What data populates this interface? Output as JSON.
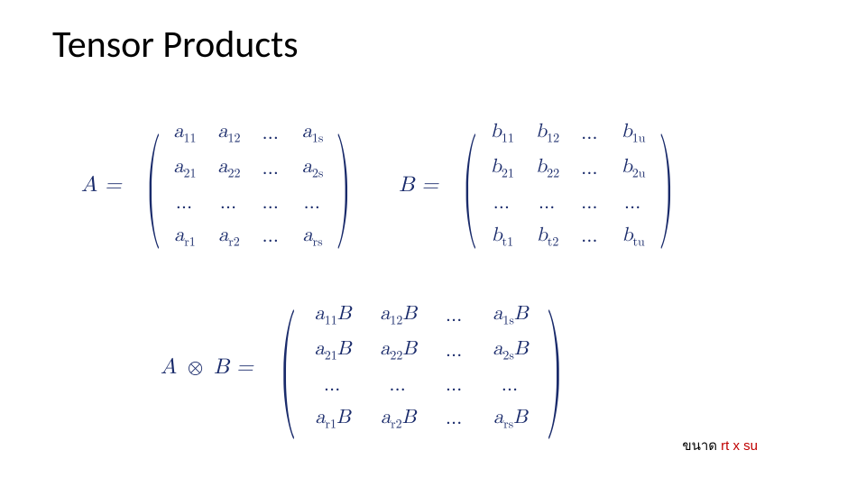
{
  "title": "Tensor Products",
  "matrixA": {
    "lhs": "A =",
    "rows": [
      [
        "a<sub>11</sub>",
        "a<sub>12</sub>",
        "…",
        "a<sub>1s</sub>"
      ],
      [
        "a<sub>21</sub>",
        "a<sub>22</sub>",
        "…",
        "a<sub>2s</sub>"
      ],
      [
        "…",
        "…",
        "…",
        "…"
      ],
      [
        "a<sub>r1</sub>",
        "a<sub>r2</sub>",
        "…",
        "a<sub>rs</sub>"
      ]
    ]
  },
  "matrixB": {
    "lhs": "B =",
    "rows": [
      [
        "b<sub>11</sub>",
        "b<sub>12</sub>",
        "…",
        "b<sub>1u</sub>"
      ],
      [
        "b<sub>21</sub>",
        "b<sub>22</sub>",
        "…",
        "b<sub>2u</sub>"
      ],
      [
        "…",
        "…",
        "…",
        "…"
      ],
      [
        "b<sub>t1</sub>",
        "b<sub>t2</sub>",
        "…",
        "b<sub>tu</sub>"
      ]
    ]
  },
  "tensor": {
    "lhs_html": "A <span class=\"otimes\">⊗</span> B =",
    "rows": [
      [
        "a<sub>11</sub>B",
        "a<sub>12</sub>B",
        "…",
        "a<sub>1s</sub>B"
      ],
      [
        "a<sub>21</sub>B",
        "a<sub>22</sub>B",
        "…",
        "a<sub>2s</sub>B"
      ],
      [
        "…",
        "…",
        "…",
        "…"
      ],
      [
        "a<sub>r1</sub>B",
        "a<sub>r2</sub>B",
        "…",
        "a<sub>rs</sub>B"
      ]
    ]
  },
  "footnote": {
    "prefix": "ขนาด",
    "size": "rt x su"
  },
  "colors": {
    "math": "#1a2b6b",
    "title": "#000000",
    "accent": "#c00000",
    "background": "#ffffff"
  },
  "typography": {
    "title_fontsize": 42,
    "math_fontsize": 22,
    "footnote_fontsize": 15
  }
}
